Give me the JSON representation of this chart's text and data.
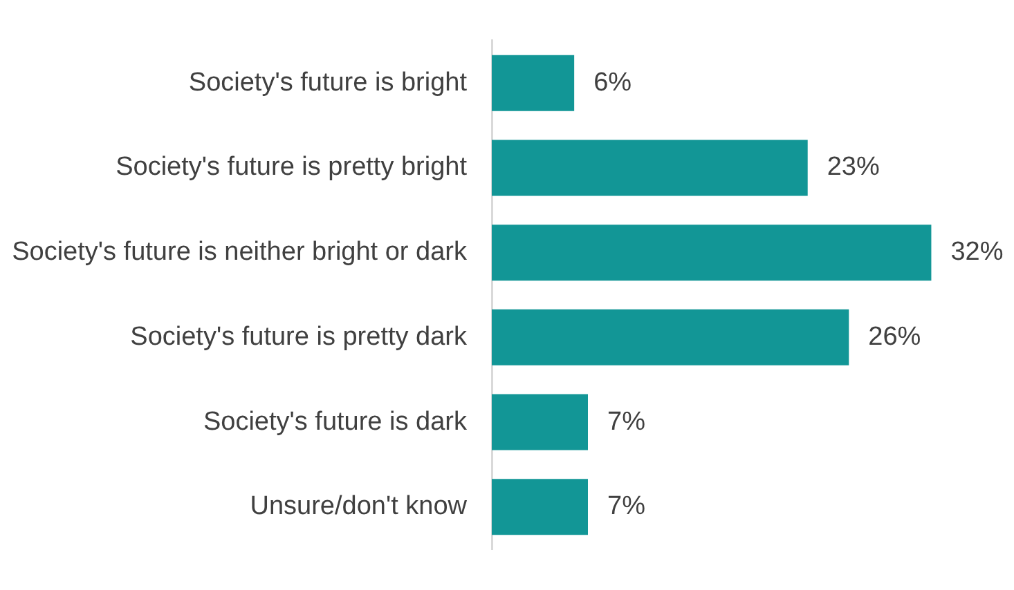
{
  "chart_data": {
    "type": "bar",
    "orientation": "horizontal",
    "categories": [
      "Society's future is bright",
      "Society's future is pretty bright",
      "Society's future is neither bright or dark",
      "Society's future is pretty dark",
      "Society's future is dark",
      "Unsure/don't know"
    ],
    "values": [
      6,
      23,
      32,
      26,
      7,
      7
    ],
    "value_labels": [
      "6%",
      "23%",
      "32%",
      "26%",
      "7%",
      "7%"
    ],
    "color": "#129696",
    "tick_labels": "y"
  }
}
